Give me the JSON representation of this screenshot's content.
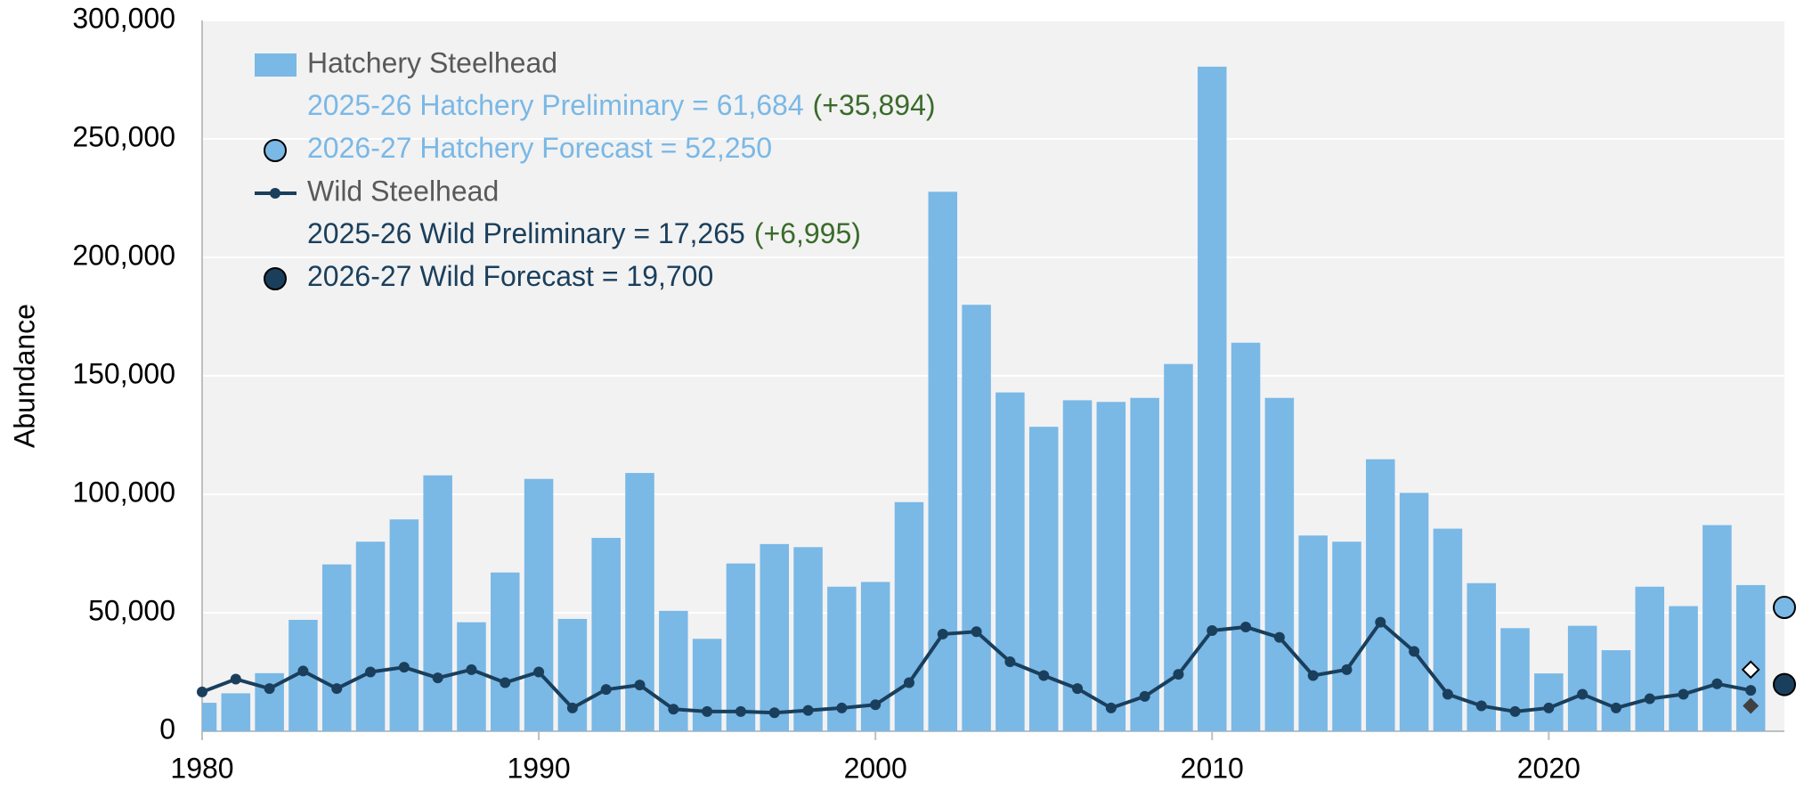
{
  "chart_data": {
    "type": "bar-line",
    "y_label": "Abundance",
    "x": [
      1980,
      1981,
      1982,
      1983,
      1984,
      1985,
      1986,
      1987,
      1988,
      1989,
      1990,
      1991,
      1992,
      1993,
      1994,
      1995,
      1996,
      1997,
      1998,
      1999,
      2000,
      2001,
      2002,
      2003,
      2004,
      2005,
      2006,
      2007,
      2008,
      2009,
      2010,
      2011,
      2012,
      2013,
      2014,
      2015,
      2016,
      2017,
      2018,
      2019,
      2020,
      2021,
      2022,
      2023,
      2024,
      2025,
      2026
    ],
    "series": [
      {
        "name": "Hatchery Steelhead",
        "type": "bar",
        "color": "#7ab8e6",
        "values": [
          12000,
          16000,
          24500,
          47000,
          70400,
          80000,
          89400,
          108000,
          46000,
          67000,
          106500,
          47400,
          81600,
          109000,
          50800,
          39000,
          70800,
          79000,
          77700,
          61000,
          63000,
          96700,
          227700,
          180000,
          143000,
          128500,
          139700,
          139000,
          140700,
          155000,
          280500,
          164000,
          140700,
          82600,
          80000,
          114800,
          100600,
          85500,
          62500,
          43500,
          24400,
          44500,
          34200,
          61000,
          52800,
          87000,
          61684
        ],
        "notes": [
          {
            "text": "2025-26 Hatchery Preliminary = 61,684",
            "change": "(+35,894)"
          },
          {
            "text": "2026-27 Hatchery Forecast = 52,250",
            "marker": "circle"
          }
        ],
        "forecast": {
          "x": 2027,
          "value": 52250
        }
      },
      {
        "name": "Wild Steelhead",
        "type": "line",
        "color": "#1a3f5c",
        "values": [
          16600,
          22000,
          18000,
          25400,
          18000,
          25000,
          27000,
          22500,
          26000,
          20500,
          25000,
          9800,
          17600,
          19500,
          9300,
          8300,
          8300,
          7800,
          8800,
          9800,
          11200,
          20500,
          41000,
          42000,
          29300,
          23500,
          18000,
          9800,
          14700,
          24000,
          42500,
          44000,
          39600,
          23500,
          26000,
          46000,
          33700,
          15600,
          10700,
          8300,
          9800,
          15600,
          9800,
          13700,
          15600,
          20000,
          17265
        ],
        "notes": [
          {
            "text": "2025-26 Wild Preliminary = 17,265",
            "change": "(+6,995)"
          },
          {
            "text": "2026-27 Wild Forecast = 19,700",
            "marker": "circle"
          }
        ],
        "forecast": {
          "x": 2027,
          "value": 19700
        }
      }
    ],
    "markers": [
      {
        "x": 2026,
        "value": 26000,
        "shape": "diamond-open"
      },
      {
        "x": 2026,
        "value": 10700,
        "shape": "diamond-filled"
      }
    ],
    "note_color_change": "#3a6b2a",
    "xlim": [
      1980,
      2027
    ],
    "xticks": [
      1980,
      1990,
      2000,
      2010,
      2020
    ],
    "ylim": [
      0,
      300000
    ],
    "yticks": [
      0,
      {
        "value": 50000,
        "label": "50,000"
      },
      {
        "value": 100000,
        "label": "100,000"
      },
      {
        "value": 150000,
        "label": "150,000"
      },
      {
        "value": 200000,
        "label": "200,000"
      },
      {
        "value": 250000,
        "label": "250,000"
      },
      {
        "value": 300000,
        "label": "300,000"
      }
    ],
    "grid": true
  }
}
